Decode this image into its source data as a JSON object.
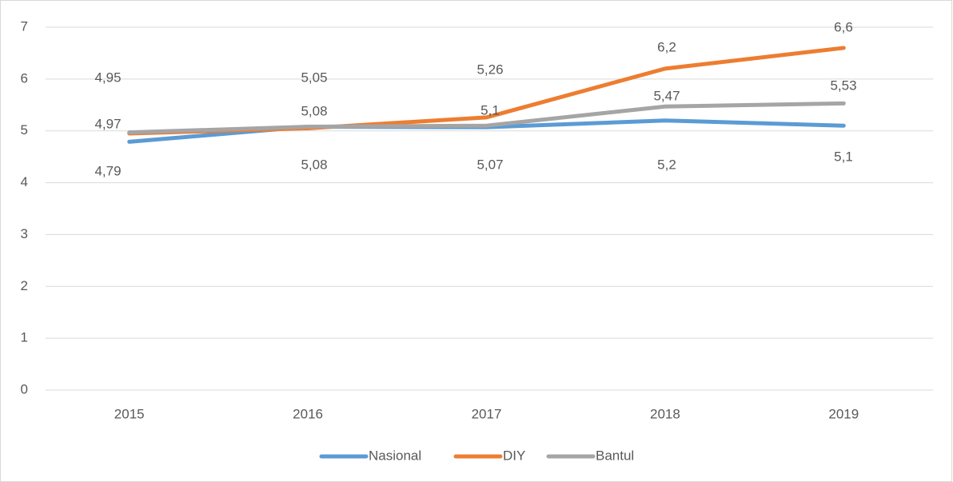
{
  "chart_data": {
    "type": "line",
    "categories": [
      "2015",
      "2016",
      "2017",
      "2018",
      "2019"
    ],
    "series": [
      {
        "name": "Nasional",
        "color": "#5b9bd5",
        "values": [
          4.79,
          5.08,
          5.07,
          5.2,
          5.1
        ],
        "value_labels": [
          "4,79",
          "5,08",
          "5,07",
          "5,2",
          "5,1"
        ]
      },
      {
        "name": "DIY",
        "color": "#ed7d31",
        "values": [
          4.95,
          5.05,
          5.26,
          6.2,
          6.6
        ],
        "value_labels": [
          "4,95",
          "5,05",
          "5,26",
          "6,2",
          "6,6"
        ]
      },
      {
        "name": "Bantul",
        "color": "#a5a5a5",
        "values": [
          4.97,
          5.08,
          5.1,
          5.47,
          5.53
        ],
        "value_labels": [
          "4,97",
          "5,08",
          "5,1",
          "5,47",
          "5,53"
        ]
      }
    ],
    "ylim": [
      0,
      7
    ],
    "yticks": [
      0,
      1,
      2,
      3,
      4,
      5,
      6,
      7
    ],
    "grid": true,
    "legend": "bottom"
  }
}
